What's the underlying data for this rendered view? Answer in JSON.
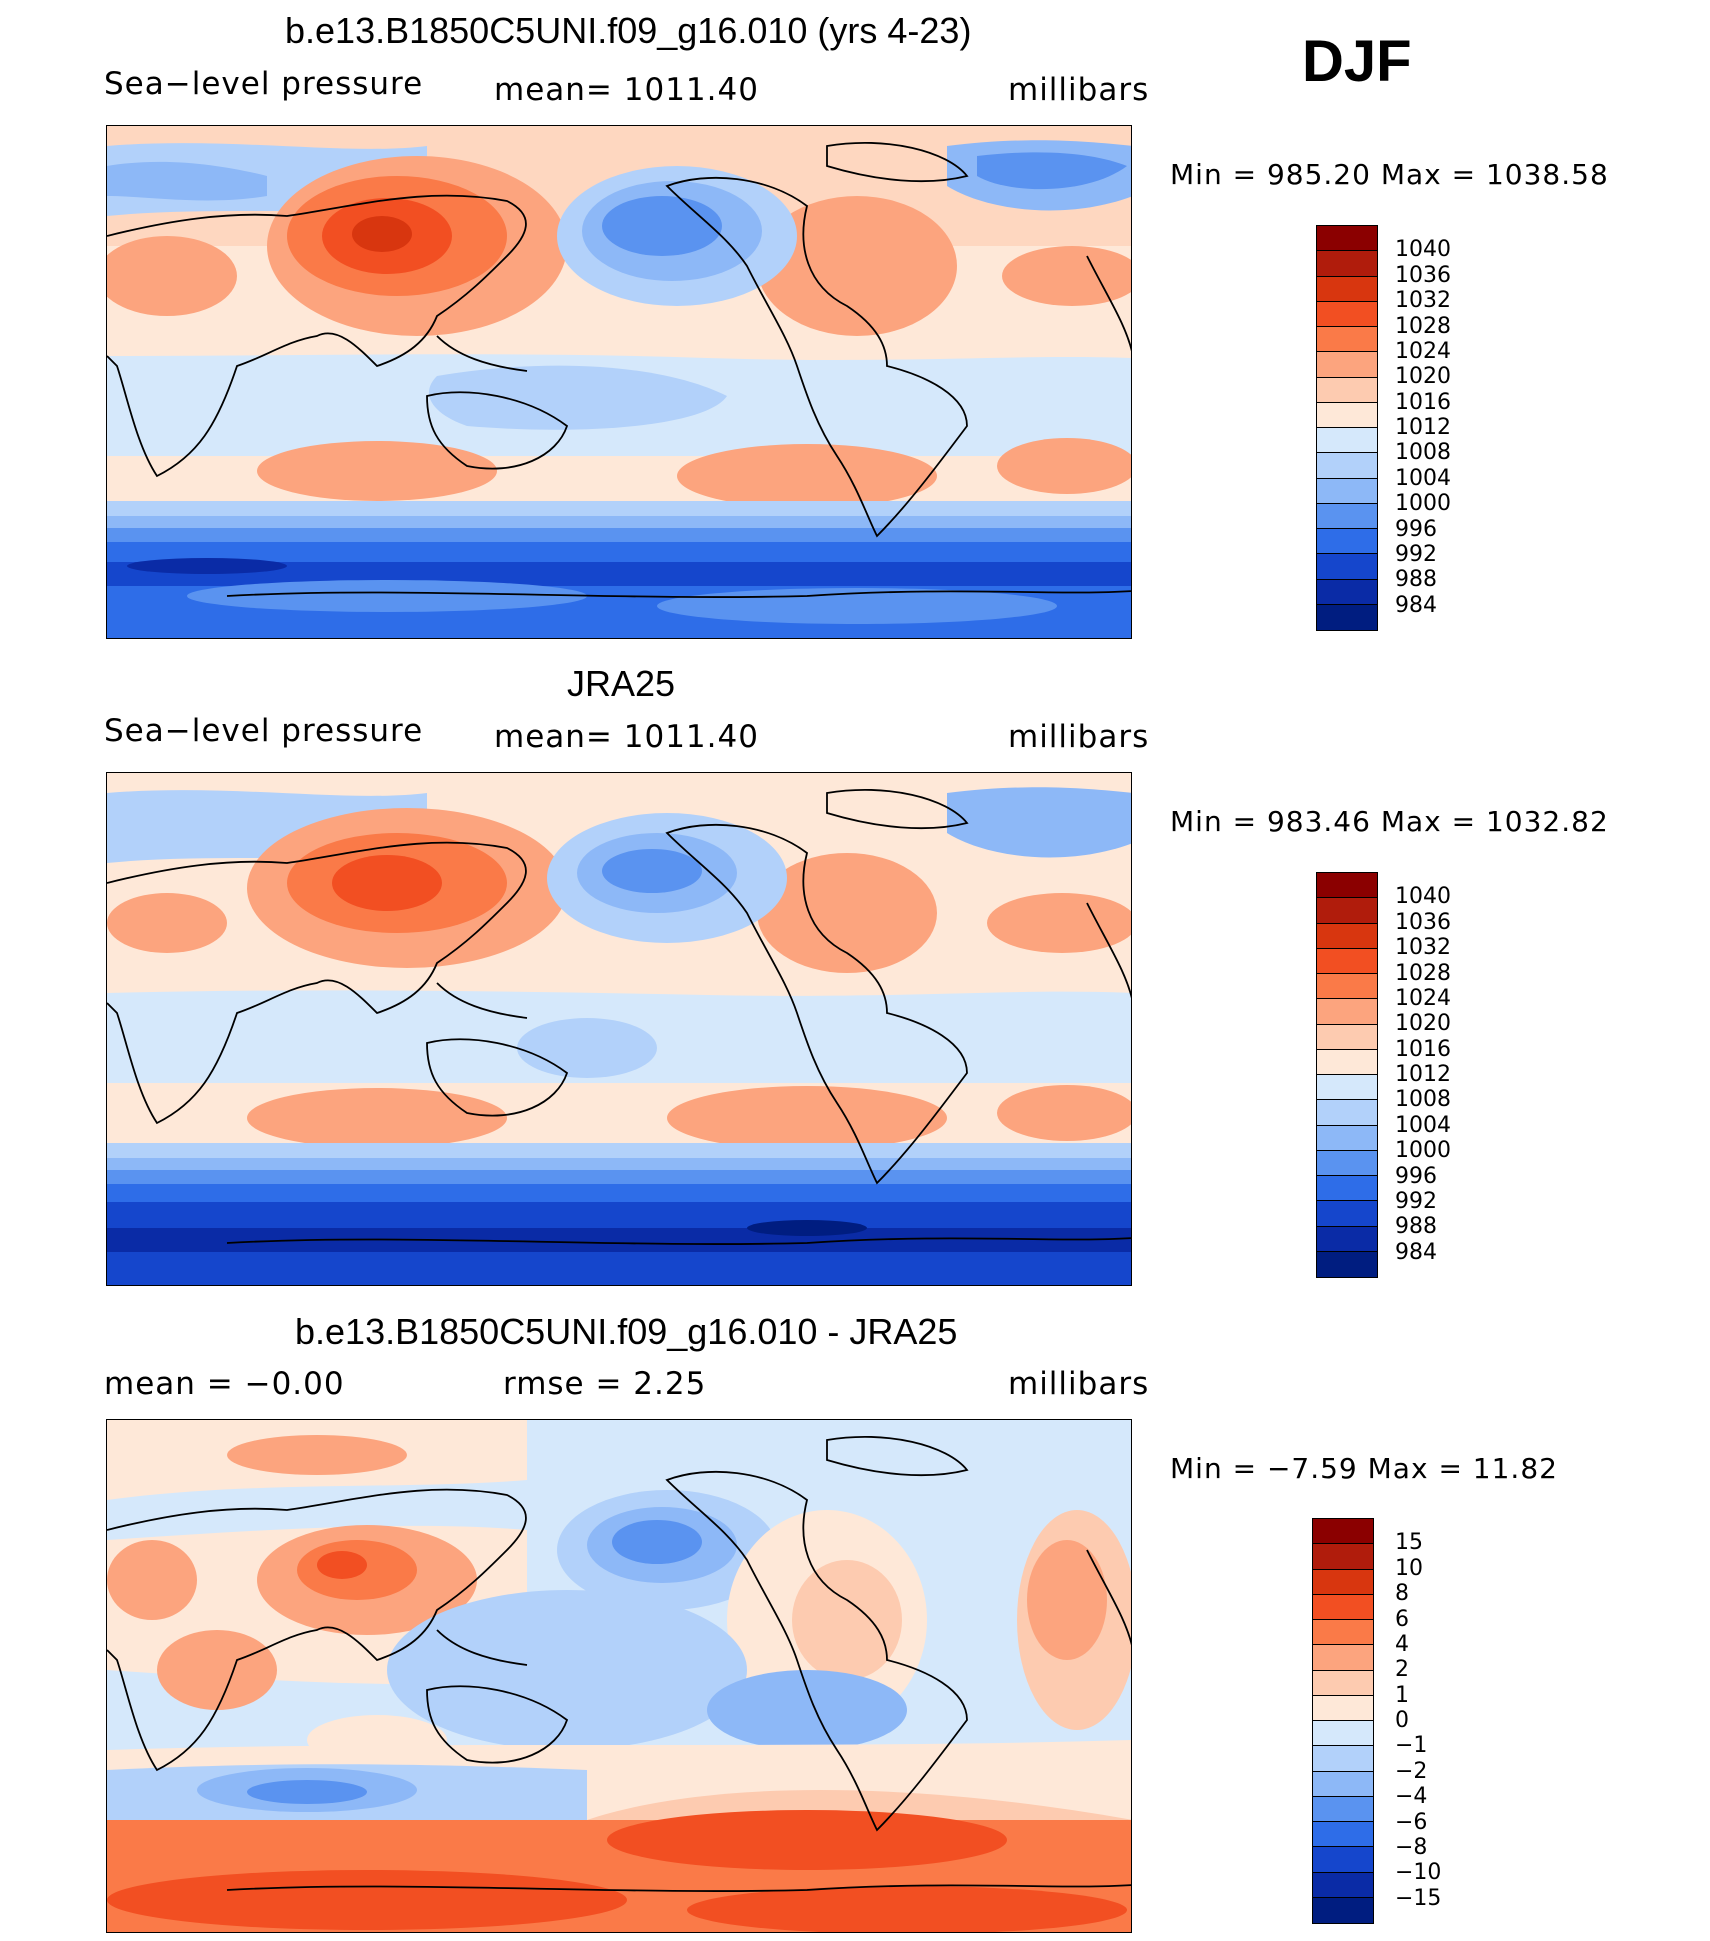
{
  "season": "DJF",
  "panels": [
    {
      "title": "b.e13.B1850C5UNI.f09_g16.010 (yrs 4-23)",
      "left": "Sea−level  pressure",
      "center": "mean=  1011.40",
      "right": "millibars",
      "minmax": "Min  =  985.20  Max  =  1038.58",
      "scale": "abs"
    },
    {
      "title": "JRA25",
      "left": "Sea−level  pressure",
      "center": "mean=  1011.40",
      "right": "millibars",
      "minmax": "Min  =  983.46  Max  =  1032.82",
      "scale": "abs"
    },
    {
      "title": "b.e13.B1850C5UNI.f09_g16.010 - JRA25",
      "left": "mean  =    −0.00",
      "center": "rmse  =     2.25",
      "right": "millibars",
      "minmax": "Min  =   −7.59  Max  =    11.82",
      "scale": "diff"
    }
  ],
  "colorbars": {
    "abs": {
      "labels": [
        "1040",
        "1036",
        "1032",
        "1028",
        "1024",
        "1020",
        "1016",
        "1012",
        "1008",
        "1004",
        "1000",
        "996",
        "992",
        "988",
        "984"
      ],
      "colors": [
        "#8b0000",
        "#b01c0c",
        "#d8360f",
        "#f24f22",
        "#fa7a48",
        "#fca47e",
        "#fdcbb0",
        "#fee8d8",
        "#d5e8fb",
        "#b2d1fa",
        "#8db8f7",
        "#5a93f0",
        "#2e6de8",
        "#1546cc",
        "#0a2ba6",
        "#001d80"
      ]
    },
    "diff": {
      "labels": [
        "15",
        "10",
        "8",
        "6",
        "4",
        "2",
        "1",
        "0",
        "−1",
        "−2",
        "−4",
        "−6",
        "−8",
        "−10",
        "−15"
      ],
      "colors": [
        "#8b0000",
        "#b01c0c",
        "#d8360f",
        "#f24f22",
        "#fa7a48",
        "#fca47e",
        "#fdcbb0",
        "#fee8d8",
        "#d5e8fb",
        "#b2d1fa",
        "#8db8f7",
        "#5a93f0",
        "#2e6de8",
        "#1546cc",
        "#0a2ba6",
        "#001d80"
      ]
    }
  }
}
